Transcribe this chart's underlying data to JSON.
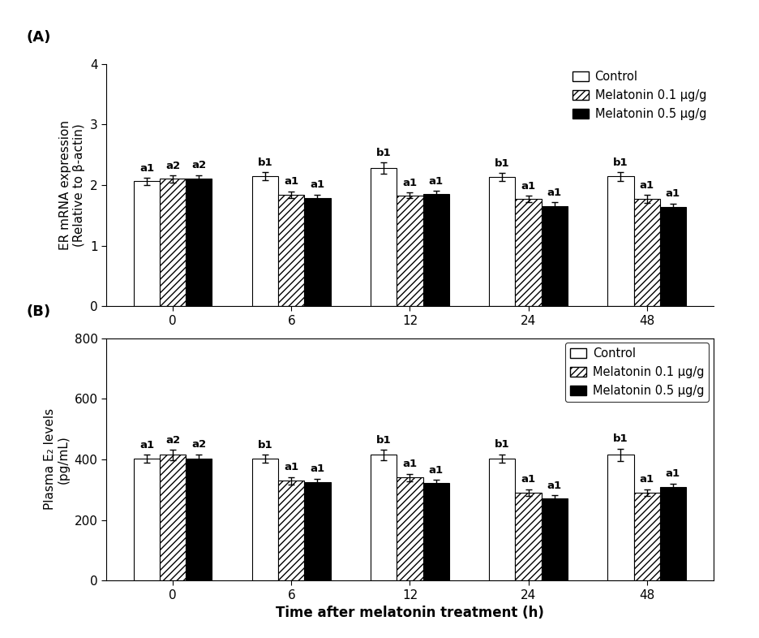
{
  "panel_A": {
    "title": "(A)",
    "ylabel": "ER mRNA expression\n(Relative to β-actin)",
    "ylim": [
      0,
      4
    ],
    "yticks": [
      0,
      1,
      2,
      3,
      4
    ],
    "groups": [
      0,
      6,
      12,
      24,
      48
    ],
    "bar_width": 0.22,
    "control": [
      2.06,
      2.15,
      2.28,
      2.13,
      2.14
    ],
    "mel01": [
      2.1,
      1.84,
      1.83,
      1.77,
      1.77
    ],
    "mel05": [
      2.1,
      1.78,
      1.85,
      1.65,
      1.64
    ],
    "control_err": [
      0.055,
      0.065,
      0.09,
      0.065,
      0.075
    ],
    "mel01_err": [
      0.055,
      0.055,
      0.048,
      0.055,
      0.065
    ],
    "mel05_err": [
      0.062,
      0.065,
      0.055,
      0.065,
      0.055
    ],
    "control_labels": [
      "a1",
      "b1",
      "b1",
      "b1",
      "b1"
    ],
    "mel01_labels": [
      "a2",
      "a1",
      "a1",
      "a1",
      "a1"
    ],
    "mel05_labels": [
      "a2",
      "a1",
      "a1",
      "a1",
      "a1"
    ],
    "legend_labels": [
      "Control",
      "Melatonin 0.1 μg/g",
      "Melatonin 0.5 μg/g"
    ],
    "has_frame": false,
    "has_top_spine": false,
    "has_right_spine": false
  },
  "panel_B": {
    "title": "(B)",
    "ylabel": "Plasma E₂ levels\n(pg/mL)",
    "xlabel": "Time after melatonin treatment (h)",
    "ylim": [
      0,
      800
    ],
    "yticks": [
      0,
      200,
      400,
      600,
      800
    ],
    "groups": [
      0,
      6,
      12,
      24,
      48
    ],
    "bar_width": 0.22,
    "control": [
      402,
      402,
      415,
      403,
      415
    ],
    "mel01": [
      415,
      330,
      340,
      290,
      290
    ],
    "mel05": [
      403,
      325,
      322,
      270,
      308
    ],
    "control_err": [
      14,
      13,
      17,
      14,
      20
    ],
    "mel01_err": [
      17,
      12,
      12,
      12,
      12
    ],
    "mel05_err": [
      14,
      11,
      11,
      11,
      12
    ],
    "control_labels": [
      "a1",
      "b1",
      "b1",
      "b1",
      "b1"
    ],
    "mel01_labels": [
      "a2",
      "a1",
      "a1",
      "a1",
      "a1"
    ],
    "mel05_labels": [
      "a2",
      "a1",
      "a1",
      "a1",
      "a1"
    ],
    "legend_labels": [
      "Control",
      "Melatonin 0.1 μg/g",
      "Melatonin 0.5 μg/g"
    ],
    "has_frame": true,
    "has_top_spine": true,
    "has_right_spine": true
  },
  "bar_colors": [
    "white",
    "white",
    "black"
  ],
  "bar_edgecolor": "black",
  "hatch_patterns": [
    "",
    "////",
    ""
  ],
  "figure_bg": "white",
  "label_fontsize": 11,
  "tick_fontsize": 11,
  "annotation_fontsize": 9.5,
  "panel_label_fontsize": 13
}
